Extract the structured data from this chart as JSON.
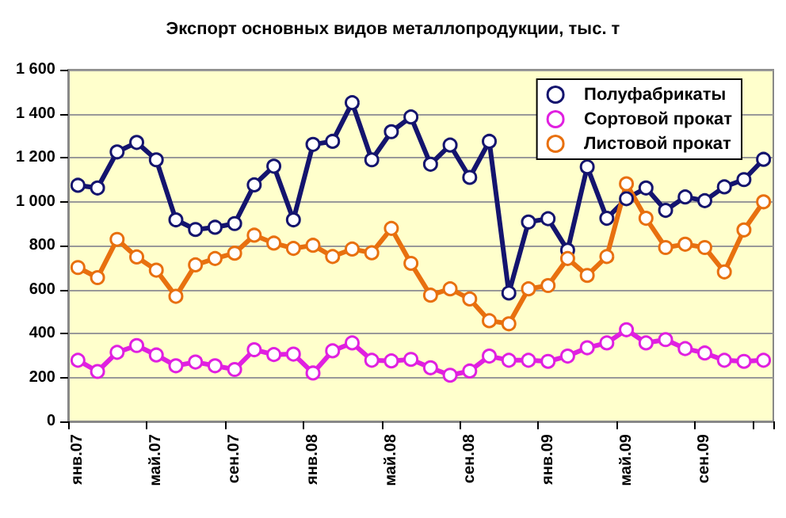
{
  "chart_data": {
    "type": "line",
    "title": "Экспорт основных видов металлопродукции, тыс. т",
    "categories": [
      "янв.07",
      null,
      null,
      null,
      "май.07",
      null,
      null,
      null,
      "сен.07",
      null,
      null,
      null,
      "янв.08",
      null,
      null,
      null,
      "май.08",
      null,
      null,
      null,
      "сен.08",
      null,
      null,
      null,
      "янв.09",
      null,
      null,
      null,
      "май.09",
      null,
      null,
      null,
      "сен.09",
      null,
      null,
      null
    ],
    "series": [
      {
        "name": "Полуфабрикаты",
        "color": "#14146e",
        "values": [
          1074,
          1062,
          1226,
          1269,
          1190,
          917,
          873,
          883,
          900,
          1076,
          1161,
          917,
          1260,
          1274,
          1450,
          1190,
          1318,
          1385,
          1170,
          1257,
          1110,
          1274,
          584,
          907,
          922,
          779,
          1158,
          924,
          1013,
          1062,
          960,
          1021,
          1004,
          1067,
          1100,
          1192
        ]
      },
      {
        "name": "Сортовой прокат",
        "color": "#e020e0",
        "values": [
          278,
          227,
          314,
          345,
          302,
          253,
          270,
          253,
          236,
          326,
          304,
          306,
          220,
          321,
          357,
          278,
          275,
          282,
          244,
          210,
          229,
          297,
          278,
          278,
          273,
          297,
          335,
          357,
          417,
          357,
          372,
          331,
          311,
          278,
          273,
          278
        ]
      },
      {
        "name": "Листовой прокат",
        "color": "#e8700f",
        "values": [
          700,
          654,
          828,
          748,
          688,
          569,
          712,
          741,
          765,
          847,
          811,
          787,
          801,
          750,
          784,
          767,
          878,
          719,
          574,
          603,
          557,
          458,
          444,
          603,
          618,
          741,
          664,
          750,
          1081,
          924,
          791,
          806,
          791,
          680,
          871,
          999
        ]
      }
    ],
    "ylim": [
      0,
      1600
    ],
    "yticks": [
      0,
      {
        "value": 200,
        "label": "200"
      },
      {
        "value": 400,
        "label": "400"
      },
      {
        "value": 600,
        "label": "600"
      },
      {
        "value": 800,
        "label": "800"
      },
      {
        "value": 1000,
        "label": "1 000"
      },
      {
        "value": 1200,
        "label": "1 200"
      },
      {
        "value": 1400,
        "label": "1 400"
      },
      {
        "value": 1600,
        "label": "1 600"
      }
    ],
    "grid": "y",
    "legend": "top right",
    "marker": "circle",
    "line_style": "solid"
  }
}
